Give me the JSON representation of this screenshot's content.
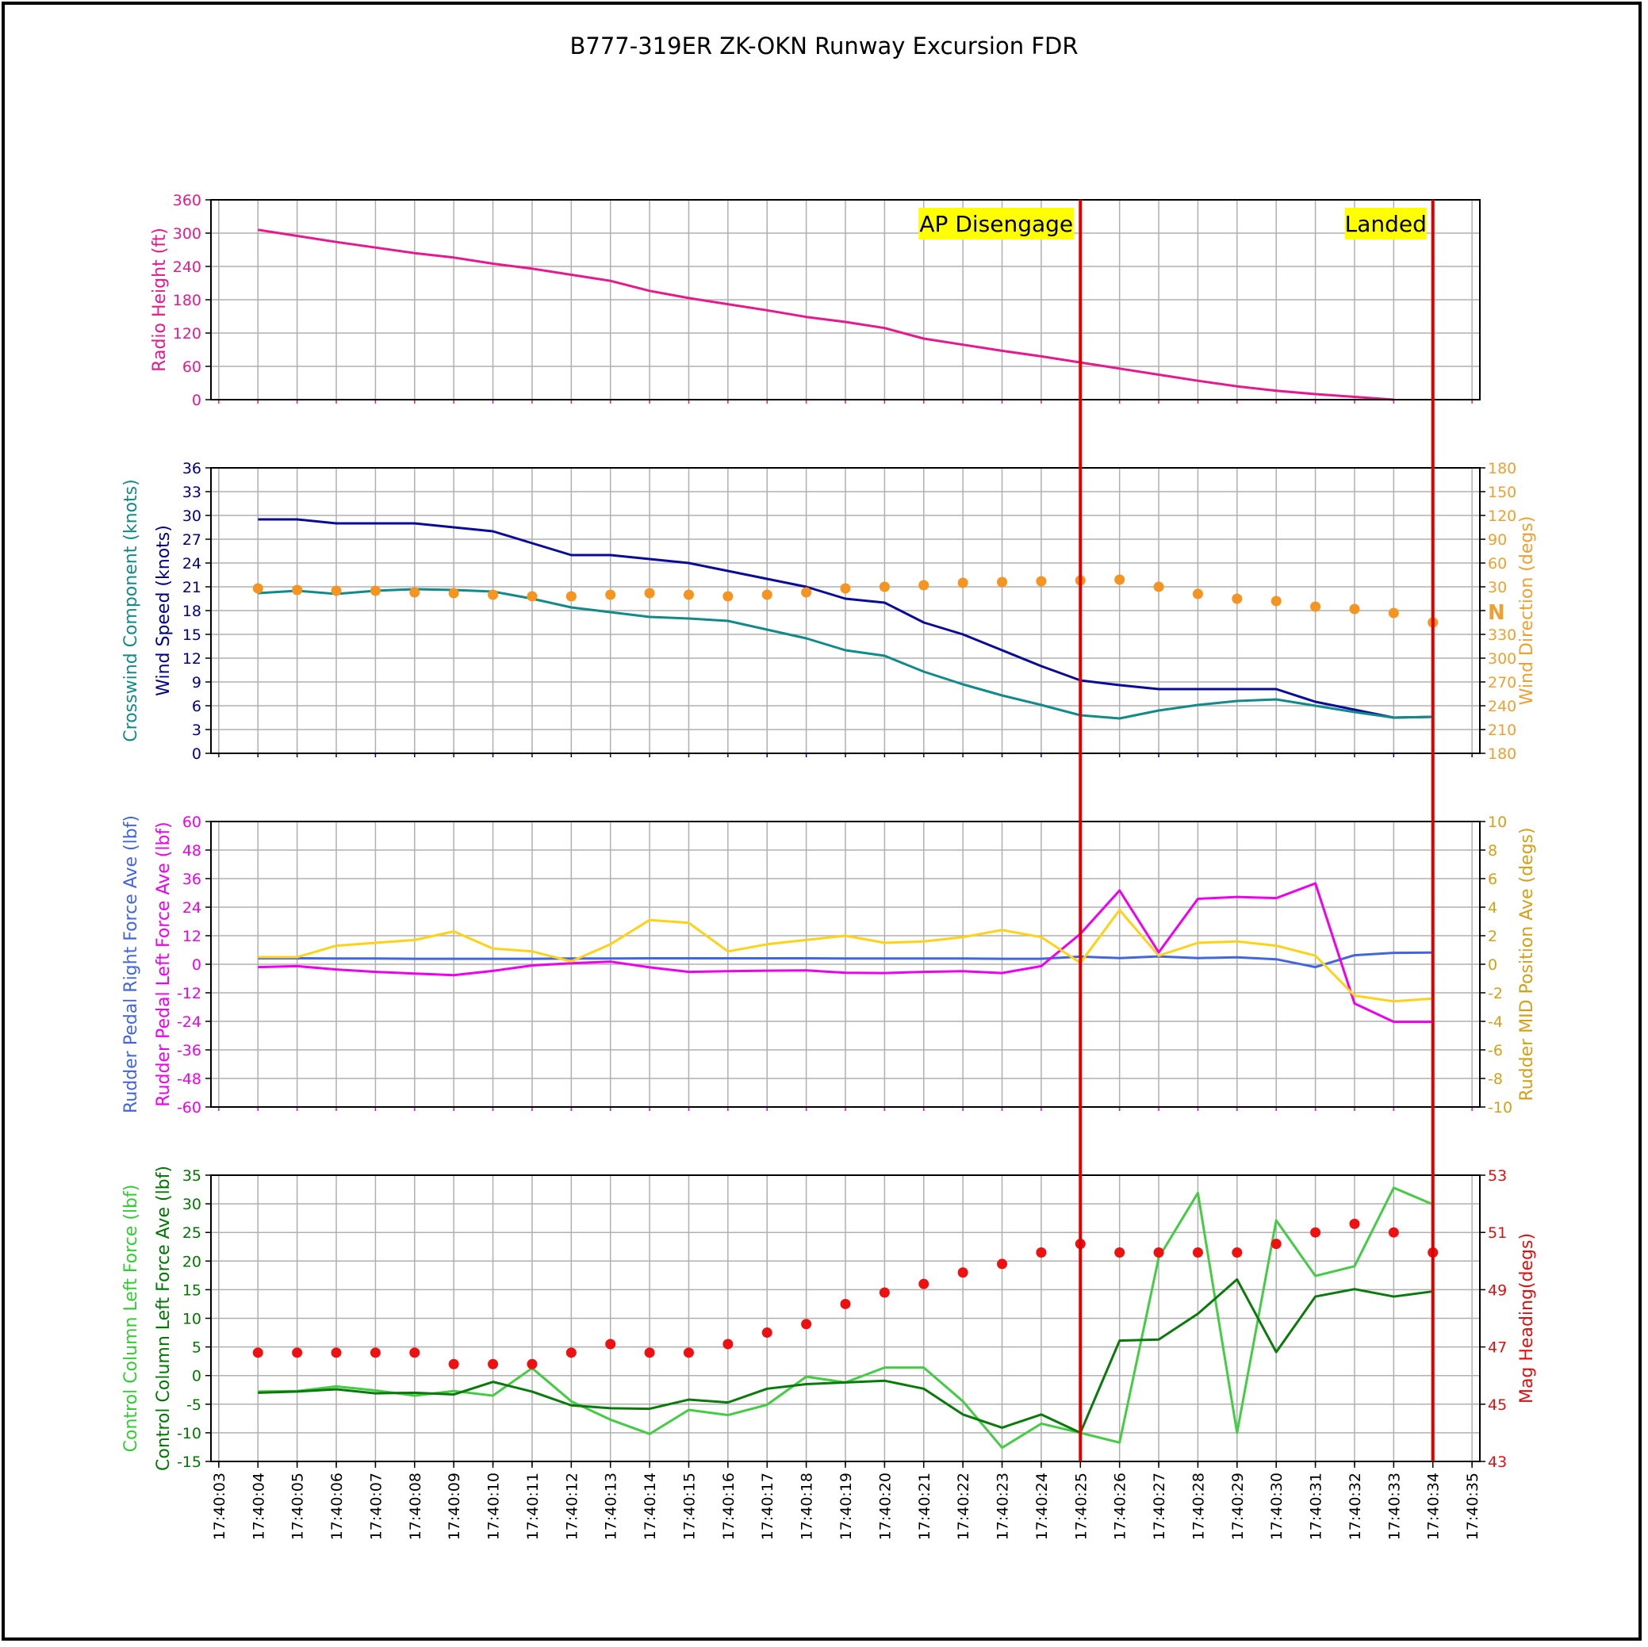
{
  "title": "B777-319ER ZK-OKN Runway Excursion FDR",
  "x_ticks": [
    "17:40:03",
    "17:40:04",
    "17:40:05",
    "17:40:06",
    "17:40:07",
    "17:40:08",
    "17:40:09",
    "17:40:10",
    "17:40:11",
    "17:40:12",
    "17:40:13",
    "17:40:14",
    "17:40:15",
    "17:40:16",
    "17:40:17",
    "17:40:18",
    "17:40:19",
    "17:40:20",
    "17:40:21",
    "17:40:22",
    "17:40:23",
    "17:40:24",
    "17:40:25",
    "17:40:26",
    "17:40:27",
    "17:40:28",
    "17:40:29",
    "17:40:30",
    "17:40:31",
    "17:40:32",
    "17:40:33",
    "17:40:34",
    "17:40:35"
  ],
  "events": [
    {
      "label": "AP Disengage",
      "x": "17:40:25",
      "line_color": "#dd0000",
      "box_color": "#ffff00"
    },
    {
      "label": "Landed",
      "x": "17:40:34",
      "line_color": "#dd0000",
      "box_color": "#ffff00"
    }
  ],
  "colors": {
    "grid": "#b0b0b0"
  },
  "chart_data": [
    {
      "type": "line",
      "id": "radio-height",
      "x": [
        "17:40:04",
        "17:40:05",
        "17:40:06",
        "17:40:07",
        "17:40:08",
        "17:40:09",
        "17:40:10",
        "17:40:11",
        "17:40:12",
        "17:40:13",
        "17:40:14",
        "17:40:15",
        "17:40:16",
        "17:40:17",
        "17:40:18",
        "17:40:19",
        "17:40:20",
        "17:40:21",
        "17:40:22",
        "17:40:23",
        "17:40:24",
        "17:40:25",
        "17:40:26",
        "17:40:27",
        "17:40:28",
        "17:40:29",
        "17:40:30",
        "17:40:31",
        "17:40:32",
        "17:40:33"
      ],
      "left_axis": {
        "label": "Radio Height (ft)",
        "ylim": [
          0,
          360
        ],
        "ticks": [
          "0",
          "60",
          "120",
          "180",
          "240",
          "300",
          "360"
        ],
        "color": "#e6198e"
      },
      "series": [
        {
          "color": "#e6198e",
          "axis": "left",
          "style": "line",
          "values": [
            306,
            295,
            284,
            274,
            264,
            256,
            245,
            236,
            225,
            214,
            196,
            183,
            172,
            161,
            149,
            140,
            129,
            110,
            99,
            88,
            78,
            67,
            56,
            45,
            34,
            24,
            16,
            10,
            5,
            0
          ]
        }
      ]
    },
    {
      "type": "line",
      "id": "wind",
      "x": [
        "17:40:04",
        "17:40:05",
        "17:40:06",
        "17:40:07",
        "17:40:08",
        "17:40:09",
        "17:40:10",
        "17:40:11",
        "17:40:12",
        "17:40:13",
        "17:40:14",
        "17:40:15",
        "17:40:16",
        "17:40:17",
        "17:40:18",
        "17:40:19",
        "17:40:20",
        "17:40:21",
        "17:40:22",
        "17:40:23",
        "17:40:24",
        "17:40:25",
        "17:40:26",
        "17:40:27",
        "17:40:28",
        "17:40:29",
        "17:40:30",
        "17:40:31",
        "17:40:32",
        "17:40:33",
        "17:40:34"
      ],
      "left_axis": {
        "label": "Wind Speed (knots)",
        "label2": "Crosswind Component (knots)",
        "ylim": [
          0,
          36
        ],
        "ticks": [
          "0",
          "3",
          "6",
          "9",
          "12",
          "15",
          "18",
          "21",
          "24",
          "27",
          "30",
          "33",
          "36"
        ],
        "color": "#00008b",
        "color2": "#138a8a"
      },
      "right_axis": {
        "label": "Wind Direction (degs)",
        "ylim": [
          -180,
          180
        ],
        "ticks": [
          "180",
          "210",
          "240",
          "270",
          "300",
          "330",
          "N",
          "30",
          "60",
          "90",
          "120",
          "150",
          "180"
        ],
        "color": "#f0a030"
      },
      "series": [
        {
          "color": "#0b0b99",
          "axis": "left",
          "style": "line",
          "values": [
            29.5,
            29.5,
            29,
            29,
            29,
            28.5,
            28,
            26.5,
            25,
            25,
            24.5,
            24,
            23,
            22,
            21,
            19.5,
            19,
            16.5,
            15,
            13,
            11,
            9.2,
            8.6,
            8.1,
            8.1,
            8.1,
            8.1,
            6.5,
            5.5,
            4.5,
            4.6
          ]
        },
        {
          "color": "#138a8a",
          "axis": "left",
          "style": "line",
          "values": [
            20.2,
            20.5,
            20.1,
            20.5,
            20.7,
            20.6,
            20.4,
            19.5,
            18.4,
            17.8,
            17.2,
            17.0,
            16.7,
            15.6,
            14.5,
            13.0,
            12.3,
            10.3,
            8.7,
            7.3,
            6.1,
            4.8,
            4.4,
            5.4,
            6.1,
            6.6,
            6.8,
            6.0,
            5.2,
            4.5,
            4.6
          ]
        },
        {
          "color": "#f59420",
          "axis": "right",
          "style": "dots",
          "values": [
            28,
            26,
            25,
            25,
            23,
            22,
            20,
            18,
            18,
            20,
            22,
            20,
            18,
            20,
            23,
            28,
            30,
            32,
            35,
            36,
            37,
            38,
            39,
            30,
            21,
            15,
            12,
            5,
            2,
            -3,
            -15
          ]
        }
      ]
    },
    {
      "type": "line",
      "id": "rudder",
      "x": [
        "17:40:04",
        "17:40:05",
        "17:40:06",
        "17:40:07",
        "17:40:08",
        "17:40:09",
        "17:40:10",
        "17:40:11",
        "17:40:12",
        "17:40:13",
        "17:40:14",
        "17:40:15",
        "17:40:16",
        "17:40:17",
        "17:40:18",
        "17:40:19",
        "17:40:20",
        "17:40:21",
        "17:40:22",
        "17:40:23",
        "17:40:24",
        "17:40:25",
        "17:40:26",
        "17:40:27",
        "17:40:28",
        "17:40:29",
        "17:40:30",
        "17:40:31",
        "17:40:32",
        "17:40:33",
        "17:40:34"
      ],
      "left_axis": {
        "label": "Rudder Pedal Left Force Ave (lbf)",
        "label2": "Rudder Pedal Right Force Ave (lbf)",
        "ylim": [
          -60,
          60
        ],
        "ticks": [
          "-60",
          "-48",
          "-36",
          "-24",
          "-12",
          "0",
          "12",
          "24",
          "36",
          "48",
          "60"
        ],
        "color": "#ee00ee",
        "color2": "#4466dd"
      },
      "right_axis": {
        "label": "Rudder MID Position Ave (degs)",
        "ylim": [
          -10,
          10
        ],
        "ticks": [
          "-10",
          "-8",
          "-6",
          "-4",
          "-2",
          "0",
          "2",
          "4",
          "6",
          "8",
          "10"
        ],
        "color": "#d4a017"
      },
      "series": [
        {
          "color": "#4466dd",
          "axis": "left",
          "style": "line",
          "values": [
            2.5,
            2.5,
            2.4,
            2.4,
            2.3,
            2.3,
            2.3,
            2.3,
            2.4,
            2.4,
            2.5,
            2.5,
            2.5,
            2.5,
            2.5,
            2.4,
            2.4,
            2.4,
            2.4,
            2.3,
            2.3,
            3.2,
            2.6,
            3.3,
            2.6,
            2.9,
            2.1,
            -1.2,
            3.8,
            4.8,
            4.9
          ]
        },
        {
          "color": "#ee00ee",
          "axis": "left",
          "style": "line",
          "values": [
            -1.2,
            -0.8,
            -2.2,
            -3.2,
            -3.9,
            -4.6,
            -2.8,
            -0.5,
            0.4,
            1.1,
            -1.3,
            -3.2,
            -2.9,
            -2.7,
            -2.6,
            -3.6,
            -3.7,
            -3.2,
            -2.9,
            -3.7,
            -0.8,
            12.8,
            31.0,
            5.0,
            27.5,
            28.3,
            27.8,
            34.0,
            -16.5,
            -24.2,
            -24.2
          ]
        },
        {
          "color": "#ffd21a",
          "axis": "right",
          "style": "line",
          "values": [
            0.5,
            0.5,
            1.3,
            1.5,
            1.7,
            2.3,
            1.1,
            0.9,
            0.2,
            1.4,
            3.1,
            2.9,
            0.9,
            1.4,
            1.7,
            2.0,
            1.5,
            1.6,
            1.9,
            2.4,
            1.9,
            0.1,
            3.8,
            0.6,
            1.5,
            1.6,
            1.3,
            0.6,
            -2.2,
            -2.6,
            -2.4
          ]
        }
      ]
    },
    {
      "type": "line",
      "id": "control-column",
      "x": [
        "17:40:04",
        "17:40:05",
        "17:40:06",
        "17:40:07",
        "17:40:08",
        "17:40:09",
        "17:40:10",
        "17:40:11",
        "17:40:12",
        "17:40:13",
        "17:40:14",
        "17:40:15",
        "17:40:16",
        "17:40:17",
        "17:40:18",
        "17:40:19",
        "17:40:20",
        "17:40:21",
        "17:40:22",
        "17:40:23",
        "17:40:24",
        "17:40:25",
        "17:40:26",
        "17:40:27",
        "17:40:28",
        "17:40:29",
        "17:40:30",
        "17:40:31",
        "17:40:32",
        "17:40:33",
        "17:40:34"
      ],
      "left_axis": {
        "label": "Control Column Left Force Ave (lbf)",
        "label2": "Control Column Left Force (lbf)",
        "ylim": [
          -15,
          35
        ],
        "ticks": [
          "-15",
          "-10",
          "-5",
          "0",
          "5",
          "10",
          "15",
          "20",
          "25",
          "30",
          "35"
        ],
        "color": "#007700",
        "color2": "#33cc33"
      },
      "right_axis": {
        "label": "Mag Heading(degs)",
        "ylim": [
          43,
          53
        ],
        "ticks": [
          "43",
          "45",
          "47",
          "49",
          "51",
          "53"
        ],
        "color": "#dd1111"
      },
      "series": [
        {
          "color": "#44cc44",
          "axis": "left",
          "style": "line",
          "values": [
            -2.8,
            -2.7,
            -1.9,
            -2.6,
            -3.5,
            -2.7,
            -3.5,
            1.3,
            -4.5,
            -7.7,
            -10.2,
            -6,
            -6.9,
            -5.1,
            -0.2,
            -1.2,
            1.4,
            1.4,
            -4.5,
            -12.6,
            -8.4,
            -10,
            -11.7,
            20.6,
            31.9,
            -10,
            27.1,
            17.4,
            19.1,
            32.8,
            29.9
          ]
        },
        {
          "color": "#0a7a0a",
          "axis": "left",
          "style": "line",
          "values": [
            -3,
            -2.8,
            -2.4,
            -3.1,
            -3,
            -3.3,
            -1.1,
            -2.8,
            -5.2,
            -5.7,
            -5.8,
            -4.2,
            -4.7,
            -2.3,
            -1.5,
            -1.2,
            -0.9,
            -2.3,
            -6.8,
            -9.1,
            -6.8,
            -10,
            6.1,
            6.3,
            10.8,
            16.8,
            4.1,
            13.8,
            15.1,
            13.8,
            14.7
          ]
        },
        {
          "color": "#ee1111",
          "axis": "right",
          "style": "dots",
          "values": [
            46.8,
            46.8,
            46.8,
            46.8,
            46.8,
            46.4,
            46.4,
            46.4,
            46.8,
            47.1,
            46.8,
            46.8,
            47.1,
            47.5,
            47.8,
            48.5,
            48.9,
            49.2,
            49.6,
            49.9,
            50.3,
            50.6,
            50.3,
            50.3,
            50.3,
            50.3,
            50.6,
            51.0,
            51.3,
            51.0,
            50.3
          ]
        }
      ]
    }
  ]
}
